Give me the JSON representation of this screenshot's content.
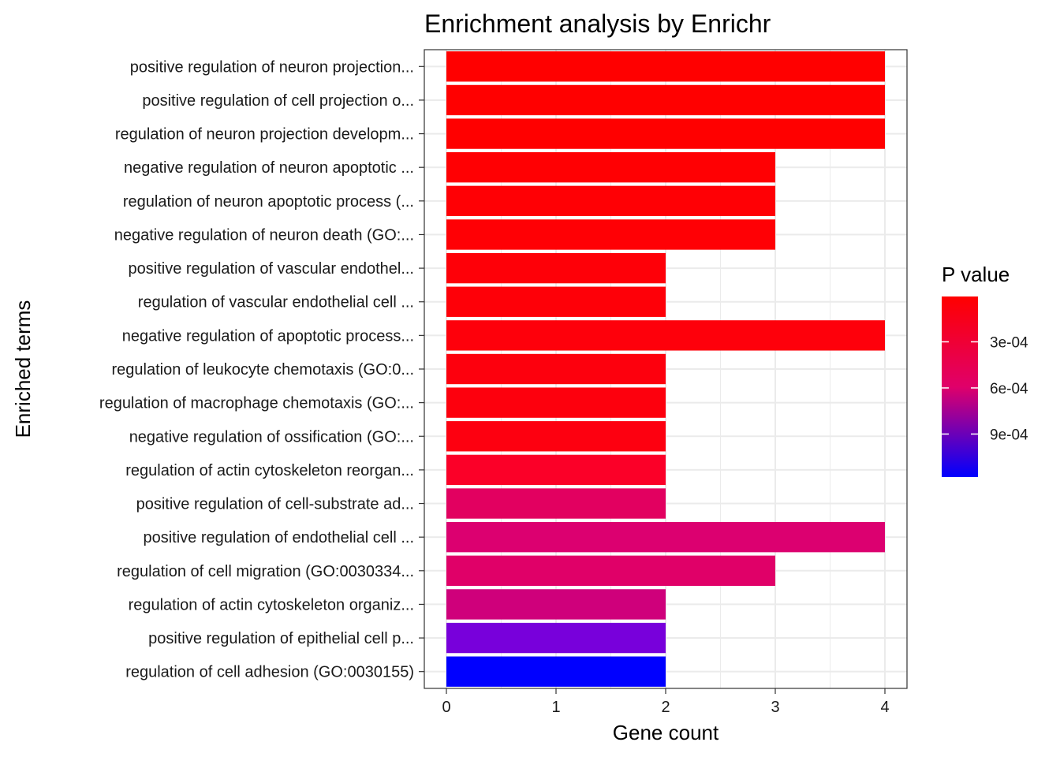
{
  "chart_data": {
    "type": "bar",
    "orientation": "horizontal",
    "title": "Enrichment analysis by Enrichr",
    "xlabel": "Gene count",
    "ylabel": "Enriched terms",
    "xlim": [
      0,
      4
    ],
    "x_ticks": [
      "0",
      "1",
      "2",
      "3",
      "4"
    ],
    "grid": true,
    "categories": [
      "positive regulation of neuron projection...",
      "positive regulation of cell projection o...",
      "regulation of neuron projection developm...",
      "negative regulation of neuron apoptotic ...",
      "regulation of neuron apoptotic process (...",
      "negative regulation of neuron death (GO:...",
      "positive regulation of vascular endothel...",
      "regulation of vascular endothelial cell ...",
      "negative regulation of apoptotic process...",
      "regulation of leukocyte chemotaxis (GO:0...",
      "regulation of macrophage chemotaxis (GO:...",
      "negative regulation of ossification (GO:...",
      "regulation of actin cytoskeleton reorgan...",
      "positive regulation of cell-substrate ad...",
      "positive regulation of endothelial cell ...",
      "regulation of cell migration (GO:0030334...",
      "regulation of actin cytoskeleton organiz...",
      "positive regulation of epithelial cell p...",
      "regulation of cell adhesion (GO:0030155)"
    ],
    "values": [
      4,
      4,
      4,
      3,
      3,
      3,
      2,
      2,
      4,
      2,
      2,
      2,
      2,
      2,
      4,
      3,
      2,
      2,
      2
    ],
    "p_values": [
      5e-06,
      8e-06,
      1e-05,
      2e-05,
      3e-05,
      3e-05,
      4e-05,
      4e-05,
      5e-05,
      6e-05,
      6e-05,
      7e-05,
      9e-05,
      0.00032,
      0.00036,
      0.00032,
      0.00043,
      0.00087,
      0.00118
    ],
    "bar_colors": [
      "#ff0000",
      "#ff0000",
      "#ff0000",
      "#ff0003",
      "#ff0005",
      "#ff0005",
      "#fe0008",
      "#fe0008",
      "#fe000b",
      "#fd000d",
      "#fd000d",
      "#fd0010",
      "#fb0028",
      "#e20060",
      "#dc0070",
      "#e00068",
      "#cf007b",
      "#7800db",
      "#0000ff"
    ],
    "legend": {
      "title": "P value",
      "position": "right",
      "gradient_top": "#ff0000",
      "gradient_bottom": "#0000ff",
      "ticks": [
        {
          "label": "3e-04",
          "value": 0.0003
        },
        {
          "label": "6e-04",
          "value": 0.0006
        },
        {
          "label": "9e-04",
          "value": 0.0009
        }
      ],
      "range": [
        5e-06,
        0.00118
      ]
    }
  }
}
